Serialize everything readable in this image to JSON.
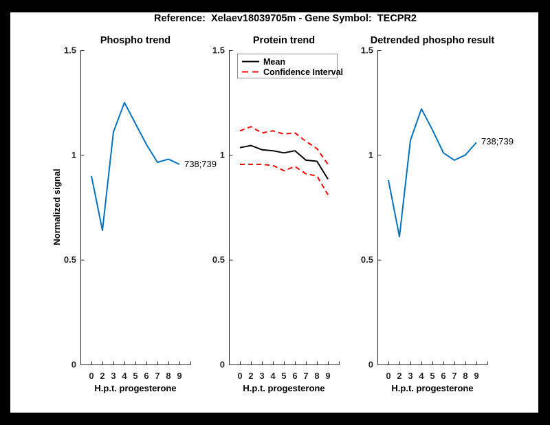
{
  "window": {
    "background": "#000000",
    "figure_background": "#FFFFFF"
  },
  "figure_title": "Reference:  Xelaev18039705m - Gene Symbol:  TECPR2",
  "colors": {
    "phospho_line": "#0072BD",
    "mean_line": "#000000",
    "confidence_line": "#FF0000",
    "axis": "#262626",
    "legend_border": "#8C8C8C",
    "legend_background": "#FFFFFF"
  },
  "axis_shared": {
    "xlabel": "H.p.t. progesterone",
    "ylabel": "Normalized signal",
    "xtick_labels": [
      "0",
      "2",
      "3",
      "4",
      "5",
      "6",
      "7",
      "8",
      "9"
    ],
    "ytick_labels": [
      "0",
      "0.5",
      "1",
      "1.5"
    ],
    "yticks": [
      0,
      0.5,
      1,
      1.5
    ],
    "ylim": [
      0,
      1.5
    ],
    "grid": "off"
  },
  "legend": {
    "entries": [
      {
        "label": "Mean",
        "style": "solid",
        "color": "#000000"
      },
      {
        "label": "Confidence Interval",
        "style": "dashed",
        "color": "#FF0000"
      }
    ],
    "position": "top-left-of-middle-plot"
  },
  "chart_data": [
    {
      "type": "line",
      "title": "Phospho trend",
      "x": [
        "0",
        "2",
        "3",
        "4",
        "5",
        "6",
        "7",
        "8",
        "9"
      ],
      "xlabel": "H.p.t. progesterone",
      "ylabel": "Normalized signal",
      "ylim": [
        0,
        1.5
      ],
      "series": [
        {
          "name": "phospho signal",
          "color_key": "phospho_line",
          "dash": false,
          "values": [
            0.9,
            0.64,
            1.11,
            1.25,
            1.15,
            1.05,
            0.965,
            0.98,
            0.955
          ]
        }
      ],
      "end_label": "738;739"
    },
    {
      "type": "line",
      "title": "Protein trend",
      "x": [
        "0",
        "2",
        "3",
        "4",
        "5",
        "6",
        "7",
        "8",
        "9"
      ],
      "xlabel": "H.p.t. progesterone",
      "ylim": [
        0,
        1.5
      ],
      "series": [
        {
          "name": "confidence upper",
          "color_key": "confidence_line",
          "dash": true,
          "values": [
            1.115,
            1.135,
            1.105,
            1.115,
            1.1,
            1.105,
            1.065,
            1.03,
            0.955
          ]
        },
        {
          "name": "confidence lower",
          "color_key": "confidence_line",
          "dash": true,
          "values": [
            0.955,
            0.955,
            0.955,
            0.95,
            0.925,
            0.945,
            0.91,
            0.9,
            0.81
          ]
        },
        {
          "name": "mean",
          "color_key": "mean_line",
          "dash": false,
          "values": [
            1.035,
            1.045,
            1.025,
            1.02,
            1.01,
            1.02,
            0.975,
            0.97,
            0.885
          ]
        }
      ],
      "end_label": ""
    },
    {
      "type": "line",
      "title": "Detrended phospho result",
      "x": [
        "0",
        "2",
        "3",
        "4",
        "5",
        "6",
        "7",
        "8",
        "9"
      ],
      "xlabel": "H.p.t. progesterone",
      "ylim": [
        0,
        1.5
      ],
      "series": [
        {
          "name": "detrended phospho signal",
          "color_key": "phospho_line",
          "dash": false,
          "values": [
            0.88,
            0.61,
            1.07,
            1.22,
            1.12,
            1.01,
            0.975,
            1.0,
            1.06
          ]
        }
      ],
      "end_label": "738;739"
    }
  ]
}
